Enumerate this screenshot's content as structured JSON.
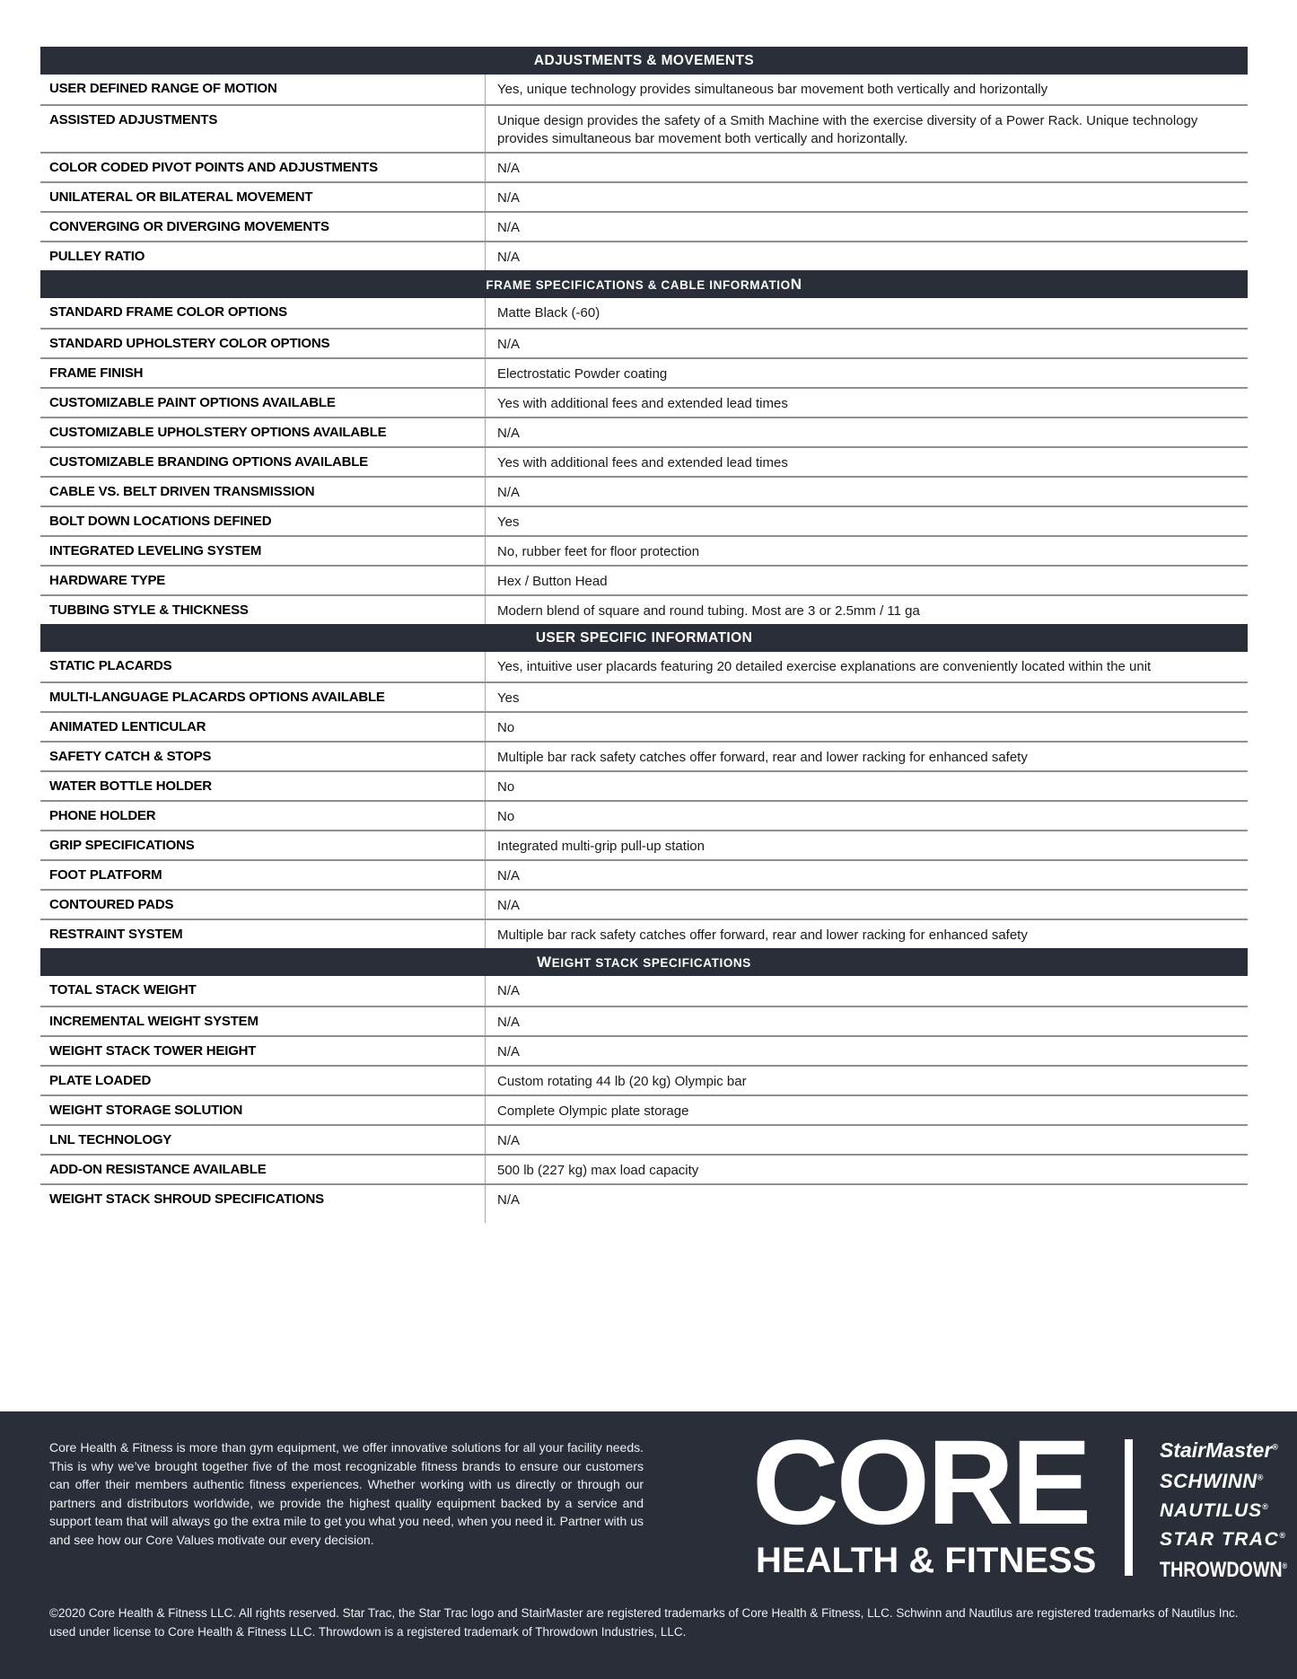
{
  "colors": {
    "section_bar_bg": "#2a2e38",
    "footer_bg": "#2a2e38",
    "row_border": "#8f8f8f",
    "column_divider": "#a8a8a8",
    "page_bg": "#ffffff",
    "footer_text": "#eef0f2"
  },
  "sections": [
    {
      "title": "ADJUSTMENTS & MOVEMENTS",
      "title_style": "uniform",
      "rows": [
        {
          "label": "USER DEFINED RANGE OF MOTION",
          "value": "Yes, unique technology provides simultaneous bar movement both vertically and horizontally"
        },
        {
          "label": "ASSISTED ADJUSTMENTS",
          "value": "Unique design provides the safety of a Smith Machine with the exercise diversity of a Power Rack. Unique technology provides simultaneous bar movement both vertically and horizontally."
        },
        {
          "label": "COLOR CODED PIVOT POINTS AND ADJUSTMENTS",
          "value": "N/A"
        },
        {
          "label": "UNILATERAL OR BILATERAL MOVEMENT",
          "value": "N/A"
        },
        {
          "label": "CONVERGING OR DIVERGING MOVEMENTS",
          "value": "N/A"
        },
        {
          "label": "PULLEY RATIO",
          "value": "N/A"
        }
      ]
    },
    {
      "title": "FRAME SPECIFICATIONS & CABLE INFORMATION",
      "title_style": "small-caps-last-letter-large",
      "rows": [
        {
          "label": "STANDARD FRAME COLOR OPTIONS",
          "value": "Matte Black (-60)"
        },
        {
          "label": "STANDARD UPHOLSTERY COLOR OPTIONS",
          "value": "N/A"
        },
        {
          "label": "FRAME FINISH",
          "value": "Electrostatic Powder coating"
        },
        {
          "label": "CUSTOMIZABLE PAINT OPTIONS AVAILABLE",
          "value": "Yes with additional fees and extended lead times"
        },
        {
          "label": "CUSTOMIZABLE UPHOLSTERY OPTIONS AVAILABLE",
          "value": "N/A"
        },
        {
          "label": "CUSTOMIZABLE BRANDING OPTIONS AVAILABLE",
          "value": "Yes with additional fees and extended lead times"
        },
        {
          "label": "CABLE VS. BELT DRIVEN TRANSMISSION",
          "value": "N/A"
        },
        {
          "label": "BOLT DOWN LOCATIONS DEFINED",
          "value": "Yes"
        },
        {
          "label": "INTEGRATED LEVELING SYSTEM",
          "value": "No, rubber feet for floor protection"
        },
        {
          "label": "HARDWARE TYPE",
          "value": "Hex / Button Head"
        },
        {
          "label": "TUBBING STYLE & THICKNESS",
          "value": "Modern blend of square and round tubing. Most are 3 or 2.5mm / 11 ga"
        }
      ]
    },
    {
      "title": "USER SPECIFIC INFORMATION",
      "title_style": "uniform",
      "rows": [
        {
          "label": "STATIC PLACARDS",
          "value": "Yes, intuitive user placards featuring 20 detailed exercise explanations are conveniently located within the unit"
        },
        {
          "label": "MULTI-LANGUAGE PLACARDS OPTIONS AVAILABLE",
          "value": "Yes"
        },
        {
          "label": "ANIMATED LENTICULAR",
          "value": "No"
        },
        {
          "label": "SAFETY CATCH & STOPS",
          "value": "Multiple bar rack safety catches offer forward, rear and lower racking for enhanced safety"
        },
        {
          "label": "WATER BOTTLE HOLDER",
          "value": "No"
        },
        {
          "label": "PHONE HOLDER",
          "value": "No"
        },
        {
          "label": "GRIP SPECIFICATIONS",
          "value": "Integrated multi-grip pull-up station"
        },
        {
          "label": "FOOT PLATFORM",
          "value": "N/A"
        },
        {
          "label": "CONTOURED PADS",
          "value": "N/A"
        },
        {
          "label": "RESTRAINT SYSTEM",
          "value": "Multiple bar rack safety catches offer forward, rear and lower racking for enhanced safety"
        }
      ]
    },
    {
      "title": "WEIGHT STACK SPECIFICATIONS",
      "title_style": "small-caps-first-letter-large",
      "rows": [
        {
          "label": "TOTAL STACK WEIGHT",
          "value": "N/A"
        },
        {
          "label": "INCREMENTAL WEIGHT SYSTEM",
          "value": "N/A"
        },
        {
          "label": "WEIGHT STACK TOWER HEIGHT",
          "value": "N/A"
        },
        {
          "label": "PLATE LOADED",
          "value": "Custom rotating 44 lb (20 kg) Olympic bar"
        },
        {
          "label": "WEIGHT STORAGE SOLUTION",
          "value": "Complete Olympic plate storage"
        },
        {
          "label": "LNL TECHNOLOGY",
          "value": "N/A"
        },
        {
          "label": "ADD-ON RESISTANCE AVAILABLE",
          "value": "500 lb (227 kg) max load capacity"
        },
        {
          "label": "WEIGHT STACK SHROUD SPECIFICATIONS",
          "value": "N/A"
        }
      ]
    }
  ],
  "footer": {
    "about": "Core Health & Fitness is more than gym equipment, we offer innovative solutions for all your facility needs. This is why we’ve brought together five of the most recognizable fitness brands to ensure our customers can offer their members authentic fitness experiences. Whether working with us directly or through our partners and distributors worldwide, we provide the highest quality equipment backed by a service and support team that will always go the extra mile to get you what you need, when you need it. Partner with us and see how our Core Values motivate our every decision.",
    "logo": {
      "title": "CORE",
      "subtitle": "HEALTH & FITNESS"
    },
    "brands": [
      {
        "name": "StairMaster",
        "mark": "®"
      },
      {
        "name": "SCHWINN",
        "mark": "®"
      },
      {
        "name": "NAUTILUS",
        "mark": "®"
      },
      {
        "name": "STAR TRAC",
        "mark": "®"
      },
      {
        "name": "THROWDOWN",
        "mark": "®"
      }
    ],
    "copyright": "©2020 Core Health & Fitness LLC. All rights reserved. Star Trac, the Star Trac logo and StairMaster are registered trademarks of Core Health & Fitness, LLC. Schwinn and Nautilus are registered trademarks of Nautilus Inc. used under license to Core Health & Fitness LLC. Throwdown is a registered trademark of Throwdown Industries, LLC."
  }
}
